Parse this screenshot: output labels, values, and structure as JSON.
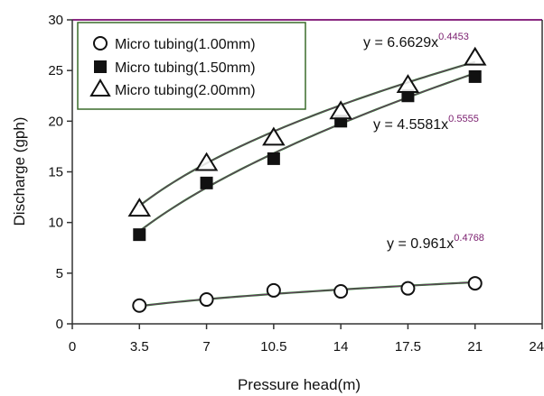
{
  "chart_data": {
    "type": "scatter",
    "xlabel": "Pressure head(m)",
    "ylabel": "Discharge (gph)",
    "xlim": [
      0,
      24.5
    ],
    "ylim": [
      0,
      30
    ],
    "xticks": [
      "0",
      "3.5",
      "7",
      "10.5",
      "14",
      "17.5",
      "21",
      "24.5"
    ],
    "yticks": [
      "0",
      "5",
      "10",
      "15",
      "20",
      "25",
      "30"
    ],
    "grid": false,
    "legend_position": "top-left",
    "series": [
      {
        "name": "Micro tubing(1.00mm)",
        "marker": "circle",
        "x": [
          3.5,
          7,
          10.5,
          14,
          17.5,
          21
        ],
        "y": [
          1.8,
          2.4,
          3.3,
          3.2,
          3.5,
          4.0
        ],
        "fit": {
          "a": 0.961,
          "b": 0.4768,
          "label_base": "y = 0.961x",
          "label_exp": "0.4768"
        }
      },
      {
        "name": "Micro tubing(1.50mm)",
        "marker": "square",
        "x": [
          3.5,
          7,
          10.5,
          14,
          17.5,
          21
        ],
        "y": [
          8.8,
          13.9,
          16.3,
          20.0,
          22.5,
          24.4
        ],
        "fit": {
          "a": 4.5581,
          "b": 0.5555,
          "label_base": "y = 4.5581x",
          "label_exp": "0.5555"
        }
      },
      {
        "name": "Micro tubing(2.00mm)",
        "marker": "triangle",
        "x": [
          3.5,
          7,
          10.5,
          14,
          17.5,
          21
        ],
        "y": [
          11.3,
          15.8,
          18.3,
          20.9,
          23.5,
          26.2
        ],
        "fit": {
          "a": 6.6629,
          "b": 0.4453,
          "label_base": "y = 6.6629x",
          "label_exp": "0.4453"
        }
      }
    ]
  },
  "colors": {
    "axis": "#333333",
    "top_border": "#8a2a82",
    "marker": "#111111",
    "fit_line_a": "#2e7d32",
    "fit_line_b": "#7a1d6e",
    "eq_exponent": "#7a1d6e",
    "legend_border": "#3a6b2a"
  }
}
